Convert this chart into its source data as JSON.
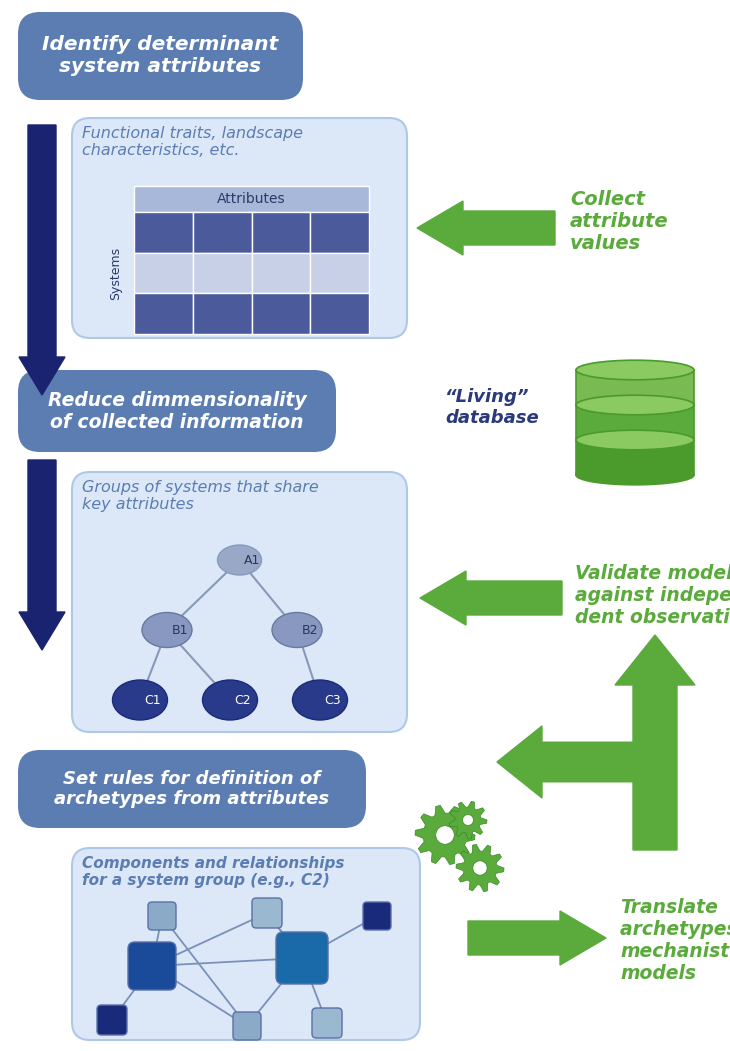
{
  "bg_color": "#ffffff",
  "blue_box_color": "#5b7db1",
  "blue_box_text_color": "#ffffff",
  "light_box_border": "#b0c8e8",
  "light_box_bg": "#dce8f8",
  "green_color": "#5aaa3c",
  "dark_navy": "#1a2370",
  "matrix_header_color": "#a8b8d8",
  "matrix_dark_color": "#4a5a9a",
  "matrix_light_color": "#c8d0e8",
  "tree_node_A_color": "#9aa8c8",
  "tree_node_B_color": "#8898c0",
  "tree_node_C_color": "#2a3a8a",
  "net_large_dark": "#1a4a9a",
  "net_large_med": "#2a6aaa",
  "net_small_light": "#9ab8d8",
  "net_small_dark": "#2a3a8a",
  "step1_label": "Identify determinant\nsystem attributes",
  "step2_label": "Reduce dimmensionality\nof collected information",
  "step3_label": "Set rules for definition of\narchetypes from attributes",
  "box1_title": "Functional traits, landscape\ncharacteristics, etc.",
  "box2_title": "Groups of systems that share\nkey attributes",
  "box3_title": "Components and relationships\nfor a system group (e.g., C2)",
  "right1_text": "Collect\nattribute\nvalues",
  "right2_text": "“Living”\ndatabase",
  "right3_text": "Validate models\nagainst indepen-\ndent observations",
  "right4_text": "Translate\narchetypes into\nmechanistic\nmodels",
  "attr_label": "Attributes",
  "sys_label": "Systems"
}
